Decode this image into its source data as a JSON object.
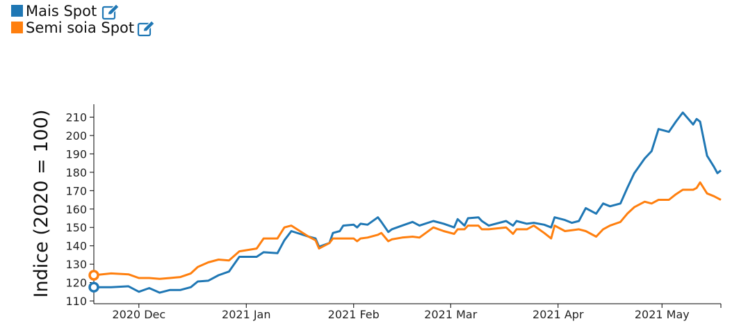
{
  "chart_data": {
    "type": "line",
    "y_label": "Indice (2020 = 100)",
    "x": [
      "2020-11-18",
      "2020-11-23",
      "2020-11-28",
      "2020-12-01",
      "2020-12-04",
      "2020-12-07",
      "2020-12-10",
      "2020-12-13",
      "2020-12-16",
      "2020-12-18",
      "2020-12-21",
      "2020-12-24",
      "2020-12-27",
      "2020-12-30",
      "2021-01-04",
      "2021-01-06",
      "2021-01-10",
      "2021-01-12",
      "2021-01-14",
      "2021-01-19",
      "2021-01-21",
      "2021-01-22",
      "2021-01-25",
      "2021-01-26",
      "2021-01-28",
      "2021-01-29",
      "2021-02-01",
      "2021-02-02",
      "2021-02-03",
      "2021-02-05",
      "2021-02-08",
      "2021-02-09",
      "2021-02-11",
      "2021-02-12",
      "2021-02-15",
      "2021-02-18",
      "2021-02-20",
      "2021-02-24",
      "2021-02-27",
      "2021-03-02",
      "2021-03-03",
      "2021-03-05",
      "2021-03-06",
      "2021-03-09",
      "2021-03-10",
      "2021-03-12",
      "2021-03-17",
      "2021-03-19",
      "2021-03-20",
      "2021-03-23",
      "2021-03-25",
      "2021-03-28",
      "2021-03-30",
      "2021-03-31",
      "2021-04-03",
      "2021-04-05",
      "2021-04-07",
      "2021-04-09",
      "2021-04-12",
      "2021-04-14",
      "2021-04-16",
      "2021-04-19",
      "2021-04-21",
      "2021-04-23",
      "2021-04-26",
      "2021-04-28",
      "2021-04-30",
      "2021-05-03",
      "2021-05-05",
      "2021-05-07",
      "2021-05-10",
      "2021-05-11",
      "2021-05-12",
      "2021-05-14",
      "2021-05-16",
      "2021-05-17",
      "2021-05-18"
    ],
    "series": [
      {
        "name": "Mais Spot",
        "color": "#1f77b4",
        "values": [
          117.5,
          117.5,
          118,
          115,
          117,
          114.5,
          116,
          116,
          117.5,
          120.6,
          121,
          124,
          126,
          134,
          134,
          136.5,
          136,
          143,
          148,
          145,
          144,
          139.5,
          141.5,
          147,
          148,
          151,
          151.5,
          150,
          152,
          151.5,
          155.5,
          153,
          147.5,
          149,
          151,
          153,
          151,
          153.5,
          152,
          150,
          154.5,
          151,
          155,
          155.5,
          153.5,
          151,
          153.5,
          151,
          153.5,
          152,
          152.5,
          151.5,
          150,
          155.5,
          154,
          152.5,
          153.5,
          160.5,
          157.5,
          163,
          161.5,
          163,
          171.5,
          179.5,
          187.5,
          191.5,
          203.5,
          202,
          207.5,
          212.5,
          206,
          209,
          207.5,
          189,
          183,
          179.5,
          181
        ]
      },
      {
        "name": "Semi soia Spot",
        "color": "#ff7f0e",
        "values": [
          124,
          125,
          124.5,
          122.5,
          122.5,
          122,
          122.5,
          123,
          125,
          128.5,
          131,
          132.5,
          132,
          137,
          138.5,
          144,
          144,
          150,
          151,
          145,
          143,
          138.5,
          141.5,
          144,
          144,
          144,
          144,
          142.5,
          144,
          144.5,
          146,
          147,
          142.5,
          143.5,
          144.5,
          145,
          144.5,
          150,
          148,
          146.5,
          149,
          149,
          151,
          151,
          149,
          149,
          150,
          146.5,
          149,
          149,
          151,
          147,
          144,
          151,
          148,
          148.5,
          149,
          148,
          145,
          149,
          151,
          153,
          157.5,
          161,
          164,
          163,
          165,
          165,
          168,
          170.5,
          170.5,
          171.5,
          174.5,
          168.5,
          167,
          166,
          165
        ]
      }
    ],
    "xlim": [
      "2020-11-18",
      "2021-05-18"
    ],
    "xticks": [
      {
        "value": "2020-12-01",
        "label": "2020 Dec"
      },
      {
        "value": "2021-01-01",
        "label": "2021 Jan"
      },
      {
        "value": "2021-02-01",
        "label": "2021 Feb"
      },
      {
        "value": "2021-03-01",
        "label": "2021 Mar"
      },
      {
        "value": "2021-04-01",
        "label": "2021 Apr"
      },
      {
        "value": "2021-05-01",
        "label": "2021 May"
      }
    ],
    "ylim": [
      108.5,
      217
    ],
    "yticks": [
      110,
      120,
      130,
      140,
      150,
      160,
      170,
      180,
      190,
      200,
      210
    ],
    "grid": false
  }
}
